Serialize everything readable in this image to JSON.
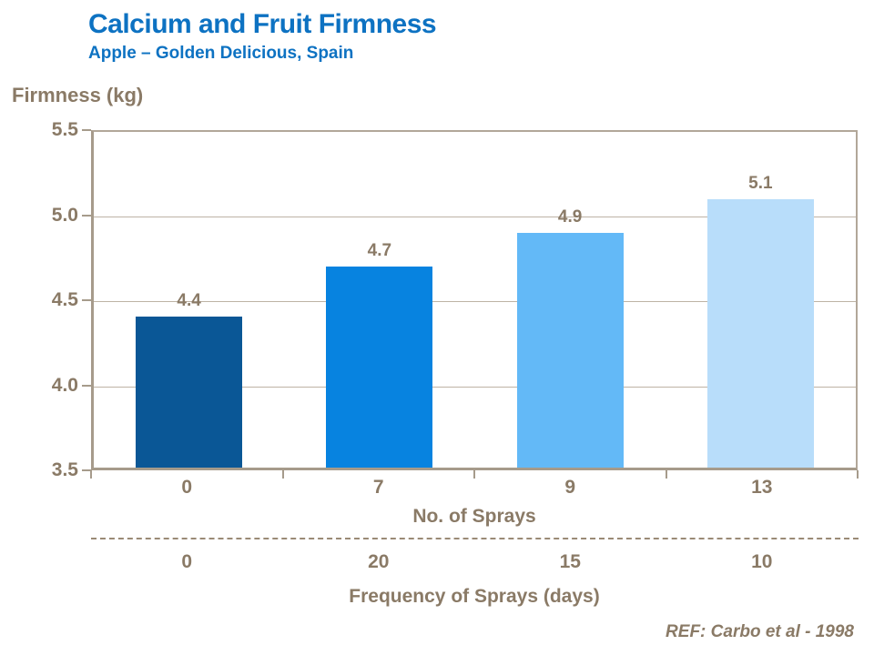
{
  "header": {
    "title": "Calcium and Fruit Firmness",
    "subtitle": "Apple – Golden Delicious, Spain"
  },
  "colors": {
    "title_blue": "#0d72c2",
    "text_brown": "#8a7a66",
    "axis_line": "#a69b8b",
    "frame_line": "#b2a799",
    "gridline": "#beb3a5"
  },
  "chart_data": {
    "type": "bar",
    "title": "Calcium and Fruit Firmness",
    "subtitle": "Apple – Golden Delicious, Spain",
    "ylabel": "Firmness (kg)",
    "ylim": [
      3.5,
      5.5
    ],
    "yticks": [
      "5.5",
      "5.0",
      "4.5",
      "4.0",
      "3.5"
    ],
    "grid": "horizontal",
    "legend": "none",
    "categories": [
      "0",
      "7",
      "9",
      "13"
    ],
    "values": [
      4.4,
      4.7,
      4.9,
      5.1
    ],
    "bar_labels": [
      "4.4",
      "4.7",
      "4.9",
      "5.1"
    ],
    "bar_colors": [
      "#0a5796",
      "#0783e0",
      "#63b9f7",
      "#b8ddfa"
    ],
    "xlabel_row1": "No. of Sprays",
    "row2_values": [
      "0",
      "20",
      "15",
      "10"
    ],
    "xlabel_row2": "Frequency of Sprays (days)",
    "reference": "REF: Carbo et al - 1998"
  }
}
